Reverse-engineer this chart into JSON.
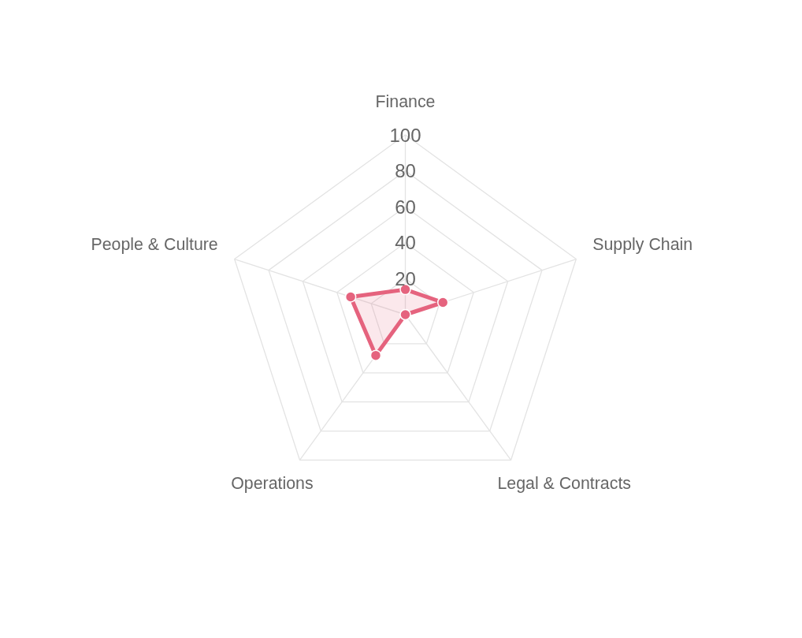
{
  "chart_data": {
    "type": "radar",
    "categories": [
      "Finance",
      "Supply Chain",
      "Legal & Contracts",
      "Operations",
      "People & Culture"
    ],
    "series": [
      {
        "color": "#e5637e",
        "values": [
          14,
          22,
          0,
          28,
          32
        ]
      }
    ],
    "ylim": [
      0,
      100
    ],
    "yticks": [
      20,
      40,
      60,
      80,
      100
    ],
    "grid": true,
    "marker": "circle",
    "line_style": "solid"
  }
}
